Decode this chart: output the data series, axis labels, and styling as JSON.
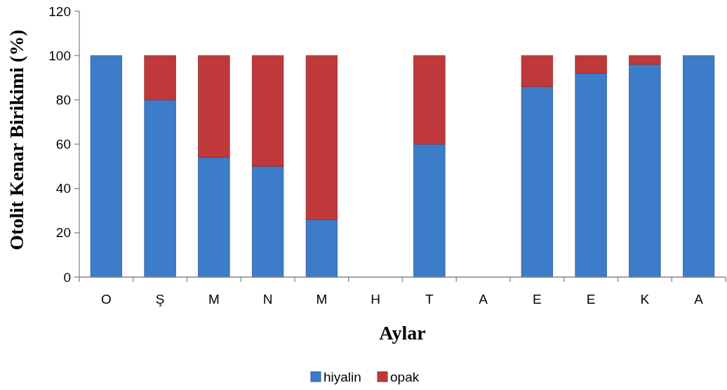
{
  "chart_data": {
    "type": "bar",
    "stacked": true,
    "xlabel": "Aylar",
    "ylabel": "Otolit Kenar Birikimi (%)",
    "categories": [
      "O",
      "Ş",
      "M",
      "N",
      "M",
      "H",
      "T",
      "A",
      "E",
      "E",
      "K",
      "A"
    ],
    "series": [
      {
        "name": "hiyalin",
        "color": "#3d7cc9",
        "values": [
          100,
          80,
          54,
          50,
          26,
          null,
          60,
          null,
          86,
          92,
          96,
          100
        ]
      },
      {
        "name": "opak",
        "color": "#c0393a",
        "values": [
          0,
          20,
          46,
          50,
          74,
          null,
          40,
          null,
          14,
          8,
          4,
          0
        ]
      }
    ],
    "ylim": [
      0,
      120
    ],
    "yticks": [
      0,
      20,
      40,
      60,
      80,
      100,
      120
    ],
    "grid": false,
    "legend": "bottom"
  }
}
